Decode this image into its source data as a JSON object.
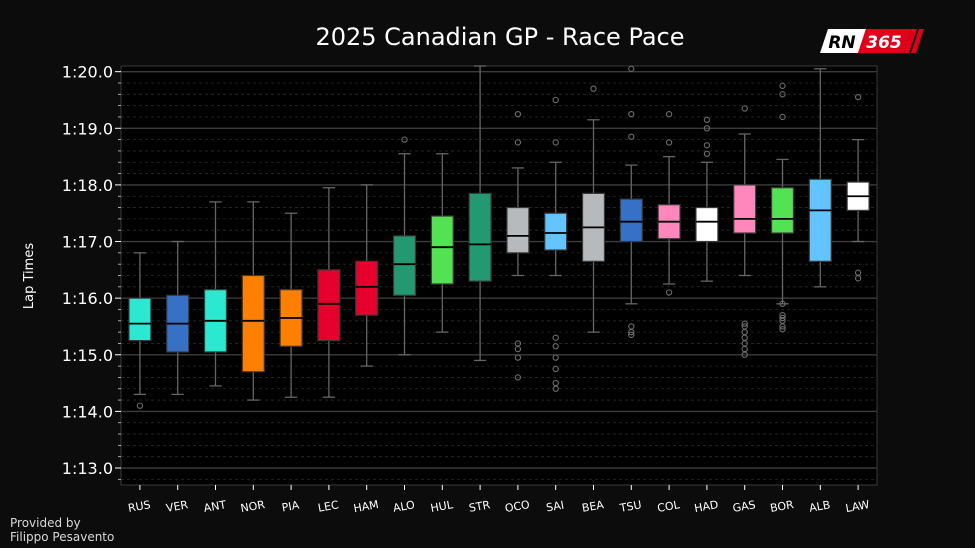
{
  "chart_data": {
    "type": "box",
    "title": "2025 Canadian GP - Race Pace",
    "xlabel": "",
    "ylabel": "Lap Times",
    "ylim": [
      72.7,
      80.1
    ],
    "yticks": [
      {
        "value": 73.0,
        "label": "1:13.0"
      },
      {
        "value": 74.0,
        "label": "1:14.0"
      },
      {
        "value": 75.0,
        "label": "1:15.0"
      },
      {
        "value": 76.0,
        "label": "1:16.0"
      },
      {
        "value": 77.0,
        "label": "1:17.0"
      },
      {
        "value": 78.0,
        "label": "1:18.0"
      },
      {
        "value": 79.0,
        "label": "1:19.0"
      },
      {
        "value": 80.0,
        "label": "1:20.0"
      }
    ],
    "grid": true,
    "series": [
      {
        "driver": "RUS",
        "color": "#2ce8d0",
        "whisker_low": 74.3,
        "q1": 75.25,
        "median": 75.55,
        "q3": 76.0,
        "whisker_high": 76.8,
        "outliers": [
          74.1
        ]
      },
      {
        "driver": "VER",
        "color": "#3671c6",
        "whisker_low": 74.3,
        "q1": 75.05,
        "median": 75.55,
        "q3": 76.05,
        "whisker_high": 77.0,
        "outliers": []
      },
      {
        "driver": "ANT",
        "color": "#2ce8d0",
        "whisker_low": 74.45,
        "q1": 75.05,
        "median": 75.6,
        "q3": 76.15,
        "whisker_high": 77.7,
        "outliers": []
      },
      {
        "driver": "NOR",
        "color": "#ff8000",
        "whisker_low": 74.2,
        "q1": 74.7,
        "median": 75.6,
        "q3": 76.4,
        "whisker_high": 77.7,
        "outliers": []
      },
      {
        "driver": "PIA",
        "color": "#ff8000",
        "whisker_low": 74.25,
        "q1": 75.15,
        "median": 75.65,
        "q3": 76.15,
        "whisker_high": 77.5,
        "outliers": []
      },
      {
        "driver": "LEC",
        "color": "#e8002d",
        "whisker_low": 74.25,
        "q1": 75.25,
        "median": 75.9,
        "q3": 76.5,
        "whisker_high": 77.95,
        "outliers": []
      },
      {
        "driver": "HAM",
        "color": "#e8002d",
        "whisker_low": 74.8,
        "q1": 75.7,
        "median": 76.2,
        "q3": 76.65,
        "whisker_high": 78.0,
        "outliers": []
      },
      {
        "driver": "ALO",
        "color": "#229971",
        "whisker_low": 75.0,
        "q1": 76.05,
        "median": 76.6,
        "q3": 77.1,
        "whisker_high": 78.55,
        "outliers": [
          78.8
        ]
      },
      {
        "driver": "HUL",
        "color": "#52e252",
        "whisker_low": 75.4,
        "q1": 76.25,
        "median": 76.9,
        "q3": 77.45,
        "whisker_high": 78.55,
        "outliers": []
      },
      {
        "driver": "STR",
        "color": "#229971",
        "whisker_low": 74.9,
        "q1": 76.3,
        "median": 76.95,
        "q3": 77.85,
        "whisker_high": 80.1,
        "outliers": []
      },
      {
        "driver": "OCO",
        "color": "#b6babd",
        "whisker_low": 76.4,
        "q1": 76.8,
        "median": 77.1,
        "q3": 77.6,
        "whisker_high": 78.3,
        "outliers": [
          78.75,
          79.25,
          75.2,
          75.1,
          74.95,
          74.6
        ]
      },
      {
        "driver": "SAI",
        "color": "#64c4ff",
        "whisker_low": 76.4,
        "q1": 76.85,
        "median": 77.15,
        "q3": 77.5,
        "whisker_high": 78.4,
        "outliers": [
          78.75,
          79.5,
          75.3,
          75.15,
          74.95,
          74.75,
          74.5,
          74.4
        ]
      },
      {
        "driver": "BEA",
        "color": "#b6babd",
        "whisker_low": 75.4,
        "q1": 76.65,
        "median": 77.25,
        "q3": 77.85,
        "whisker_high": 79.15,
        "outliers": [
          79.7
        ]
      },
      {
        "driver": "TSU",
        "color": "#3671c6",
        "whisker_low": 75.9,
        "q1": 77.0,
        "median": 77.35,
        "q3": 77.75,
        "whisker_high": 78.35,
        "outliers": [
          78.85,
          79.25,
          80.05,
          75.5,
          75.4,
          75.35
        ]
      },
      {
        "driver": "COL",
        "color": "#ff87bc",
        "whisker_low": 76.25,
        "q1": 77.05,
        "median": 77.35,
        "q3": 77.65,
        "whisker_high": 78.5,
        "outliers": [
          78.75,
          79.25,
          76.1
        ]
      },
      {
        "driver": "HAD",
        "color": "#ffffff",
        "whisker_low": 76.3,
        "q1": 77.0,
        "median": 77.35,
        "q3": 77.6,
        "whisker_high": 78.4,
        "outliers": [
          78.55,
          78.7,
          79.0,
          79.15
        ]
      },
      {
        "driver": "GAS",
        "color": "#ff87bc",
        "whisker_low": 76.4,
        "q1": 77.15,
        "median": 77.4,
        "q3": 78.0,
        "whisker_high": 78.9,
        "outliers": [
          79.35,
          75.55,
          75.5,
          75.4,
          75.3,
          75.2,
          75.1,
          75.0
        ]
      },
      {
        "driver": "BOR",
        "color": "#52e252",
        "whisker_low": 75.9,
        "q1": 77.15,
        "median": 77.4,
        "q3": 77.95,
        "whisker_high": 78.45,
        "outliers": [
          79.2,
          79.6,
          79.75,
          75.9,
          75.7,
          75.65,
          75.6,
          75.5,
          75.45
        ]
      },
      {
        "driver": "ALB",
        "color": "#64c4ff",
        "whisker_low": 76.2,
        "q1": 76.65,
        "median": 77.55,
        "q3": 78.1,
        "whisker_high": 80.05,
        "outliers": []
      },
      {
        "driver": "LAW",
        "color": "#ffffff",
        "whisker_low": 77.0,
        "q1": 77.55,
        "median": 77.8,
        "q3": 78.05,
        "whisker_high": 78.8,
        "outliers": [
          79.55,
          76.45,
          76.35
        ]
      }
    ]
  },
  "credit": {
    "line1": "Provided by",
    "line2": "Filippo Pesavento"
  },
  "logo": {
    "left_text": "RN",
    "right_text": "365",
    "bg_left": "#ffffff",
    "bg_right": "#e0001a"
  }
}
